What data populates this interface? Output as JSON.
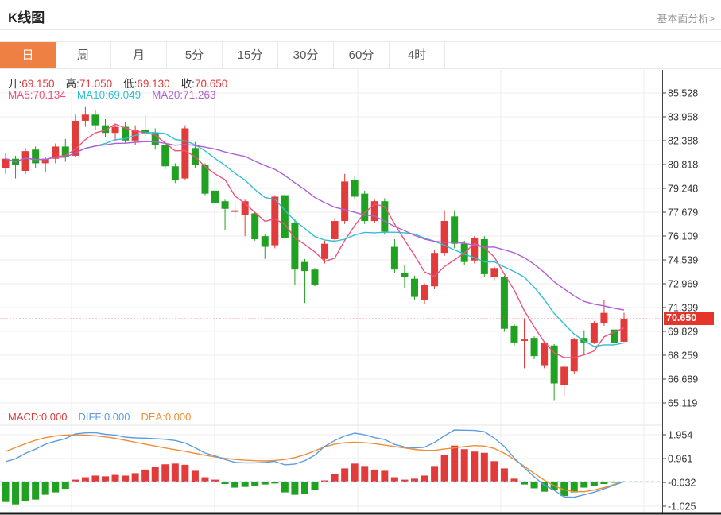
{
  "header": {
    "title": "K线图",
    "link": "基本面分析>"
  },
  "tabs": {
    "items": [
      "日",
      "周",
      "月",
      "5分",
      "15分",
      "30分",
      "60分",
      "4时"
    ],
    "active_index": 0
  },
  "ohlc": {
    "open_label": "开:",
    "open": "69.150",
    "high_label": "高:",
    "high": "71.050",
    "low_label": "低:",
    "low": "69.130",
    "close_label": "收:",
    "close": "70.650"
  },
  "ma_readout": {
    "ma5_label": "MA5:",
    "ma5": "70.134",
    "ma10_label": "MA10:",
    "ma10": "69.049",
    "ma20_label": "MA20:",
    "ma20": "71.263"
  },
  "macd_readout": {
    "macd_label": "MACD:",
    "macd": "0.000",
    "diff_label": "DIFF:",
    "diff": "0.000",
    "dea_label": "DEA:",
    "dea": "0.000"
  },
  "price_badge": "70.650",
  "colors": {
    "up": "#e23b3b",
    "down": "#21a121",
    "ma5": "#f0517e",
    "ma10": "#31bfd4",
    "ma20": "#b05ed6",
    "diff": "#5c9ce6",
    "dea": "#ef8d35",
    "accent": "#ee8043",
    "badge": "#e5352b",
    "grid": "#ededed",
    "axis": "#444",
    "zero_dash": "#aecdf0"
  },
  "chart_data": {
    "type": "candlestick_with_macd",
    "title": "K线图 (daily K-line with MA5/MA10/MA20 and MACD)",
    "main_panel": {
      "y_ticks": [
        85.528,
        83.958,
        82.388,
        80.818,
        79.248,
        77.679,
        76.109,
        74.539,
        72.969,
        71.399,
        69.829,
        68.259,
        66.689,
        65.119
      ],
      "last_price": 70.65,
      "ma_windows": [
        5,
        10,
        20
      ],
      "candles_ohlc": [
        [
          80.6,
          81.6,
          80.2,
          81.2
        ],
        [
          81.2,
          81.4,
          79.9,
          80.8
        ],
        [
          80.4,
          81.9,
          80.2,
          81.7
        ],
        [
          81.8,
          82.0,
          80.6,
          80.9
        ],
        [
          80.9,
          81.3,
          80.3,
          81.2
        ],
        [
          81.2,
          82.2,
          80.9,
          82.0
        ],
        [
          82.0,
          82.5,
          81.0,
          81.3
        ],
        [
          81.4,
          84.1,
          81.3,
          83.7
        ],
        [
          83.7,
          84.6,
          83.3,
          84.1
        ],
        [
          84.1,
          84.4,
          83.1,
          83.4
        ],
        [
          83.4,
          83.8,
          82.6,
          82.9
        ],
        [
          82.9,
          83.5,
          82.4,
          83.3
        ],
        [
          83.3,
          83.6,
          82.2,
          82.4
        ],
        [
          82.4,
          83.4,
          82.1,
          83.1
        ],
        [
          83.1,
          84.1,
          82.7,
          82.9
        ],
        [
          82.9,
          83.2,
          81.8,
          82.1
        ],
        [
          82.1,
          82.3,
          80.5,
          80.7
        ],
        [
          80.7,
          80.9,
          79.6,
          79.8
        ],
        [
          79.9,
          83.4,
          79.8,
          83.2
        ],
        [
          81.9,
          82.3,
          80.6,
          80.8
        ],
        [
          80.8,
          80.9,
          78.8,
          78.9
        ],
        [
          79.1,
          79.2,
          78.1,
          78.3
        ],
        [
          78.4,
          78.5,
          76.5,
          77.9
        ],
        [
          77.7,
          78.3,
          77.2,
          77.8
        ],
        [
          77.5,
          78.5,
          76.1,
          78.4
        ],
        [
          77.6,
          77.7,
          75.8,
          75.9
        ],
        [
          76.1,
          76.2,
          74.6,
          75.4
        ],
        [
          75.5,
          78.8,
          75.3,
          78.7
        ],
        [
          78.8,
          78.9,
          75.9,
          76.0
        ],
        [
          77.0,
          77.2,
          72.9,
          73.9
        ],
        [
          74.4,
          74.6,
          71.7,
          73.8
        ],
        [
          73.9,
          74.0,
          72.8,
          72.9
        ],
        [
          74.6,
          75.8,
          74.3,
          75.6
        ],
        [
          75.9,
          77.3,
          75.7,
          77.1
        ],
        [
          77.1,
          80.2,
          76.9,
          79.7
        ],
        [
          79.8,
          80.1,
          78.5,
          78.7
        ],
        [
          78.9,
          79.1,
          76.9,
          77.1
        ],
        [
          77.1,
          78.5,
          77.0,
          78.4
        ],
        [
          78.4,
          78.6,
          76.2,
          76.4
        ],
        [
          75.4,
          75.9,
          73.7,
          73.9
        ],
        [
          73.7,
          74.2,
          72.7,
          73.4
        ],
        [
          73.3,
          73.5,
          71.9,
          72.1
        ],
        [
          71.9,
          73.0,
          71.6,
          72.9
        ],
        [
          72.8,
          75.2,
          72.6,
          75.0
        ],
        [
          75.0,
          77.8,
          74.8,
          77.1
        ],
        [
          77.4,
          77.8,
          75.3,
          75.6
        ],
        [
          75.6,
          75.8,
          74.2,
          74.4
        ],
        [
          74.5,
          76.1,
          74.3,
          76.0
        ],
        [
          75.9,
          76.1,
          73.4,
          73.6
        ],
        [
          73.4,
          74.1,
          73.2,
          74.0
        ],
        [
          73.4,
          73.5,
          69.8,
          70.0
        ],
        [
          70.2,
          70.3,
          68.9,
          69.1
        ],
        [
          69.2,
          70.7,
          67.4,
          69.3
        ],
        [
          69.4,
          69.5,
          68.0,
          68.2
        ],
        [
          67.6,
          69.2,
          67.4,
          69.1
        ],
        [
          68.9,
          69.0,
          65.3,
          66.4
        ],
        [
          66.3,
          67.6,
          65.6,
          67.5
        ],
        [
          67.2,
          69.4,
          67.0,
          69.3
        ],
        [
          69.4,
          69.9,
          68.3,
          69.1
        ],
        [
          69.1,
          70.5,
          69.0,
          70.4
        ],
        [
          70.35,
          71.9,
          70.2,
          71.05
        ],
        [
          69.95,
          70.1,
          68.9,
          69.05
        ],
        [
          69.15,
          71.05,
          69.13,
          70.65
        ]
      ]
    },
    "macd_panel": {
      "y_ticks": [
        1.954,
        0.961,
        -0.032,
        -1.025
      ],
      "hist": [
        -0.85,
        -0.95,
        -0.8,
        -0.75,
        -0.55,
        -0.45,
        -0.3,
        0.08,
        0.18,
        0.25,
        0.22,
        0.28,
        0.25,
        0.35,
        0.5,
        0.62,
        0.72,
        0.75,
        0.7,
        0.45,
        0.18,
        0.08,
        -0.1,
        -0.25,
        -0.22,
        -0.18,
        -0.12,
        -0.08,
        -0.45,
        -0.55,
        -0.5,
        -0.35,
        0.05,
        0.3,
        0.55,
        0.75,
        0.65,
        0.5,
        0.45,
        0.18,
        0.08,
        0.12,
        0.25,
        0.65,
        1.1,
        1.5,
        1.35,
        1.25,
        1.2,
        0.85,
        0.55,
        0.12,
        -0.12,
        -0.28,
        -0.42,
        -0.35,
        -0.6,
        -0.45,
        -0.25,
        -0.18,
        -0.1,
        -0.05,
        0.0
      ],
      "diff": [
        0.83,
        0.95,
        1.18,
        1.35,
        1.56,
        1.68,
        1.79,
        1.99,
        2.03,
        2.04,
        1.97,
        1.94,
        1.85,
        1.82,
        1.81,
        1.79,
        1.76,
        1.71,
        1.61,
        1.41,
        1.19,
        1.07,
        0.92,
        0.8,
        0.78,
        0.78,
        0.8,
        0.84,
        0.7,
        0.73,
        0.87,
        1.1,
        1.47,
        1.71,
        1.9,
        2.02,
        1.95,
        1.83,
        1.75,
        1.55,
        1.44,
        1.4,
        1.43,
        1.63,
        1.91,
        2.15,
        2.14,
        2.13,
        2.08,
        1.81,
        1.46,
        0.98,
        0.58,
        0.2,
        -0.15,
        -0.36,
        -0.64,
        -0.65,
        -0.55,
        -0.44,
        -0.3,
        -0.15,
        0.0
      ],
      "dea": [
        1.25,
        1.42,
        1.58,
        1.72,
        1.83,
        1.9,
        1.94,
        1.95,
        1.94,
        1.91,
        1.86,
        1.8,
        1.72,
        1.64,
        1.56,
        1.48,
        1.4,
        1.33,
        1.26,
        1.18,
        1.1,
        1.03,
        0.97,
        0.92,
        0.89,
        0.87,
        0.86,
        0.88,
        0.92,
        1.0,
        1.12,
        1.28,
        1.45,
        1.56,
        1.62,
        1.64,
        1.62,
        1.58,
        1.52,
        1.46,
        1.4,
        1.34,
        1.3,
        1.3,
        1.36,
        1.4,
        1.46,
        1.5,
        1.48,
        1.38,
        1.18,
        0.92,
        0.64,
        0.34,
        0.06,
        -0.18,
        -0.34,
        -0.42,
        -0.42,
        -0.35,
        -0.25,
        -0.12,
        0.0
      ]
    }
  }
}
